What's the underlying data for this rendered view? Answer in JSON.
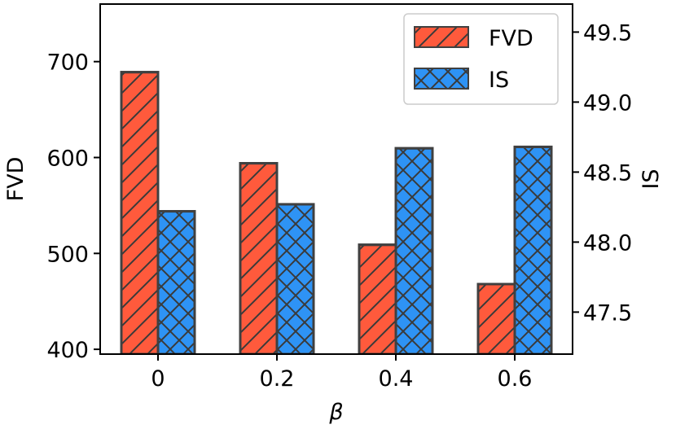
{
  "chart_data": {
    "type": "bar",
    "title": "",
    "xlabel": "β",
    "categories": [
      "0",
      "0.2",
      "0.4",
      "0.6"
    ],
    "series": [
      {
        "name": "FVD",
        "axis": "left",
        "values": [
          689,
          594,
          509,
          468
        ],
        "color": "#ff5a3c",
        "hatch": "diagonal"
      },
      {
        "name": "IS",
        "axis": "right",
        "values": [
          48.22,
          48.27,
          48.67,
          48.68
        ],
        "color": "#2e93f5",
        "hatch": "crosshatch"
      }
    ],
    "y_left": {
      "label": "FVD",
      "lim": [
        395,
        760
      ],
      "ticks": [
        400,
        500,
        600,
        700
      ],
      "tick_labels": [
        "400",
        "500",
        "600",
        "700"
      ]
    },
    "y_right": {
      "label": "IS",
      "lim": [
        47.2,
        49.7
      ],
      "ticks": [
        47.5,
        48.0,
        48.5,
        49.0,
        49.5
      ],
      "tick_labels": [
        "47.5",
        "48.0",
        "48.5",
        "49.0",
        "49.5"
      ]
    },
    "legend": {
      "position": "top-right",
      "entries": [
        "FVD",
        "IS"
      ]
    },
    "grid": false,
    "edge_color": "#404040",
    "hatch_color": "#3a3a3a"
  }
}
